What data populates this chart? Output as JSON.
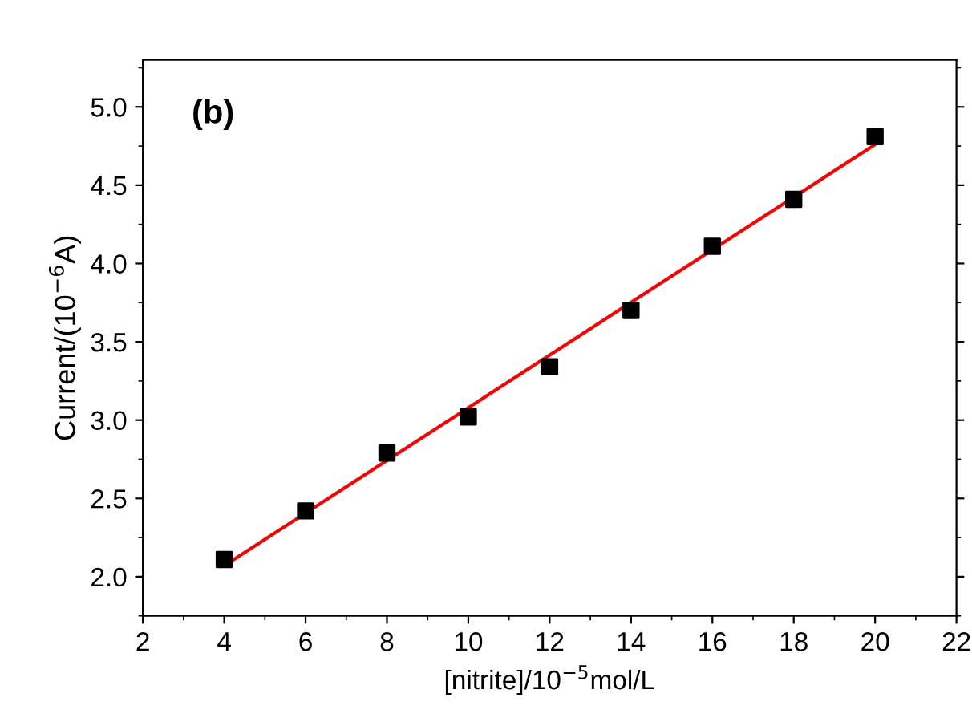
{
  "chart_data": {
    "type": "scatter",
    "xlabel": "[nitrite]/10$^{−5}$mol/L",
    "ylabel": "Current/(10$^{−6}$A)",
    "annotations": [
      "(b)"
    ],
    "x": [
      4,
      6,
      8,
      10,
      12,
      14,
      16,
      18,
      20
    ],
    "series": [
      {
        "color": "#000000",
        "marker": "square",
        "values": [
          2.11,
          2.42,
          2.79,
          3.02,
          3.34,
          3.7,
          4.11,
          4.41,
          4.81
        ]
      },
      {
        "type": "line",
        "color": "#ff0000",
        "line_style": "solid",
        "marker": "none",
        "x": [
          4,
          20
        ],
        "values": [
          2.07,
          4.76
        ]
      }
    ],
    "xlim": [
      2,
      22
    ],
    "xticks": [
      2,
      4,
      6,
      8,
      10,
      12,
      14,
      16,
      18,
      20,
      22
    ],
    "ylim": [
      1.75,
      5.3
    ],
    "yticks": [
      {
        "value": 2,
        "label": "2.0"
      },
      2.5,
      {
        "value": 3,
        "label": "3.0"
      },
      3.5,
      {
        "value": 4,
        "label": "4.0"
      },
      4.5,
      {
        "value": 5,
        "label": "5.0"
      }
    ],
    "grid": false,
    "legend": false
  }
}
